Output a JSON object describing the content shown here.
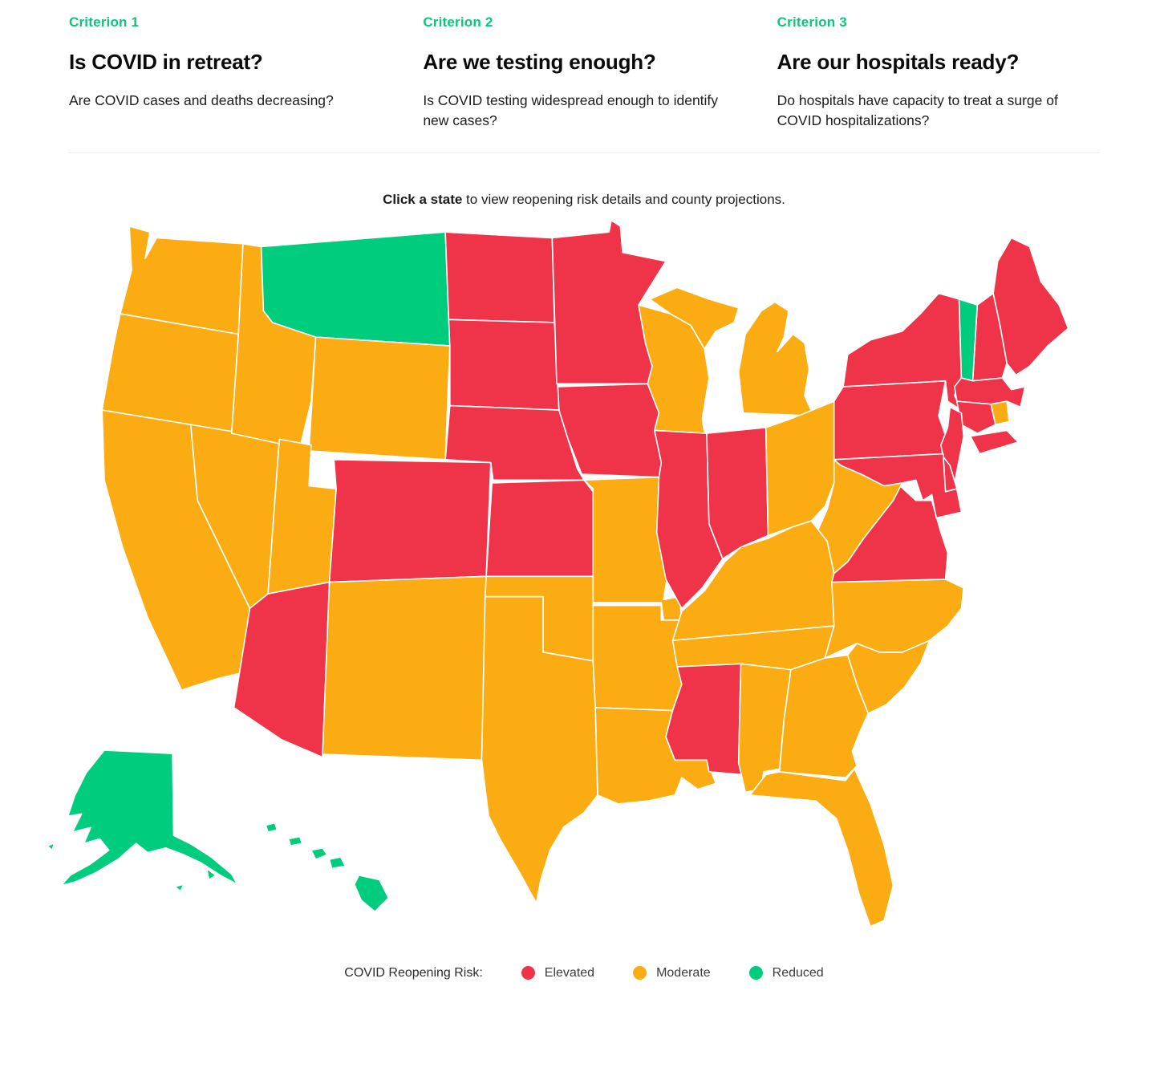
{
  "header": {
    "criteria": [
      {
        "label": "Criterion 1",
        "title": "Is COVID in retreat?",
        "description": "Are COVID cases and deaths decreasing?"
      },
      {
        "label": "Criterion 2",
        "title": "Are we testing enough?",
        "description": "Is COVID testing widespread enough to identify new cases?"
      },
      {
        "label": "Criterion 3",
        "title": "Are our hospitals ready?",
        "description": "Do hospitals have capacity to treat a surge of COVID hospitalizations?"
      }
    ]
  },
  "instruction": {
    "bold": "Click a state",
    "rest": " to view reopening risk details and county projections."
  },
  "legend": {
    "title": "COVID Reopening Risk:",
    "items": [
      {
        "label": "Elevated",
        "risk": "elevated"
      },
      {
        "label": "Moderate",
        "risk": "moderate"
      },
      {
        "label": "Reduced",
        "risk": "reduced"
      }
    ]
  },
  "colors": {
    "elevated": "#ef3348",
    "moderate": "#fbac13",
    "reduced": "#00cc7e",
    "criterion_label": "#0bc679",
    "state_border": "#ffffff"
  },
  "map": {
    "states": [
      {
        "id": "WA",
        "name": "Washington",
        "risk": "moderate"
      },
      {
        "id": "OR",
        "name": "Oregon",
        "risk": "moderate"
      },
      {
        "id": "CA",
        "name": "California",
        "risk": "moderate"
      },
      {
        "id": "NV",
        "name": "Nevada",
        "risk": "moderate"
      },
      {
        "id": "ID",
        "name": "Idaho",
        "risk": "moderate"
      },
      {
        "id": "MT",
        "name": "Montana",
        "risk": "reduced"
      },
      {
        "id": "WY",
        "name": "Wyoming",
        "risk": "moderate"
      },
      {
        "id": "UT",
        "name": "Utah",
        "risk": "moderate"
      },
      {
        "id": "CO",
        "name": "Colorado",
        "risk": "elevated"
      },
      {
        "id": "AZ",
        "name": "Arizona",
        "risk": "elevated"
      },
      {
        "id": "NM",
        "name": "New Mexico",
        "risk": "moderate"
      },
      {
        "id": "ND",
        "name": "North Dakota",
        "risk": "elevated"
      },
      {
        "id": "SD",
        "name": "South Dakota",
        "risk": "elevated"
      },
      {
        "id": "NE",
        "name": "Nebraska",
        "risk": "elevated"
      },
      {
        "id": "KS",
        "name": "Kansas",
        "risk": "elevated"
      },
      {
        "id": "OK",
        "name": "Oklahoma",
        "risk": "moderate"
      },
      {
        "id": "TX",
        "name": "Texas",
        "risk": "moderate"
      },
      {
        "id": "MN",
        "name": "Minnesota",
        "risk": "elevated"
      },
      {
        "id": "IA",
        "name": "Iowa",
        "risk": "elevated"
      },
      {
        "id": "MO",
        "name": "Missouri",
        "risk": "moderate"
      },
      {
        "id": "AR",
        "name": "Arkansas",
        "risk": "moderate"
      },
      {
        "id": "LA",
        "name": "Louisiana",
        "risk": "moderate"
      },
      {
        "id": "WI",
        "name": "Wisconsin",
        "risk": "moderate"
      },
      {
        "id": "IL",
        "name": "Illinois",
        "risk": "elevated"
      },
      {
        "id": "MI",
        "name": "Michigan",
        "risk": "moderate"
      },
      {
        "id": "IN",
        "name": "Indiana",
        "risk": "elevated"
      },
      {
        "id": "OH",
        "name": "Ohio",
        "risk": "moderate"
      },
      {
        "id": "KY",
        "name": "Kentucky",
        "risk": "moderate"
      },
      {
        "id": "TN",
        "name": "Tennessee",
        "risk": "moderate"
      },
      {
        "id": "MS",
        "name": "Mississippi",
        "risk": "elevated"
      },
      {
        "id": "AL",
        "name": "Alabama",
        "risk": "moderate"
      },
      {
        "id": "GA",
        "name": "Georgia",
        "risk": "moderate"
      },
      {
        "id": "FL",
        "name": "Florida",
        "risk": "moderate"
      },
      {
        "id": "SC",
        "name": "South Carolina",
        "risk": "moderate"
      },
      {
        "id": "NC",
        "name": "North Carolina",
        "risk": "moderate"
      },
      {
        "id": "VA",
        "name": "Virginia",
        "risk": "elevated"
      },
      {
        "id": "WV",
        "name": "West Virginia",
        "risk": "moderate"
      },
      {
        "id": "PA",
        "name": "Pennsylvania",
        "risk": "elevated"
      },
      {
        "id": "NY",
        "name": "New York",
        "risk": "elevated"
      },
      {
        "id": "ME",
        "name": "Maine",
        "risk": "elevated"
      },
      {
        "id": "NH",
        "name": "New Hampshire",
        "risk": "elevated"
      },
      {
        "id": "VT",
        "name": "Vermont",
        "risk": "reduced"
      },
      {
        "id": "MA",
        "name": "Massachusetts",
        "risk": "elevated"
      },
      {
        "id": "CT",
        "name": "Connecticut",
        "risk": "elevated"
      },
      {
        "id": "RI",
        "name": "Rhode Island",
        "risk": "moderate"
      },
      {
        "id": "NJ",
        "name": "New Jersey",
        "risk": "elevated"
      },
      {
        "id": "DE",
        "name": "Delaware",
        "risk": "elevated"
      },
      {
        "id": "MD",
        "name": "Maryland",
        "risk": "elevated"
      },
      {
        "id": "AK",
        "name": "Alaska",
        "risk": "reduced"
      },
      {
        "id": "HI",
        "name": "Hawaii",
        "risk": "reduced"
      }
    ]
  }
}
